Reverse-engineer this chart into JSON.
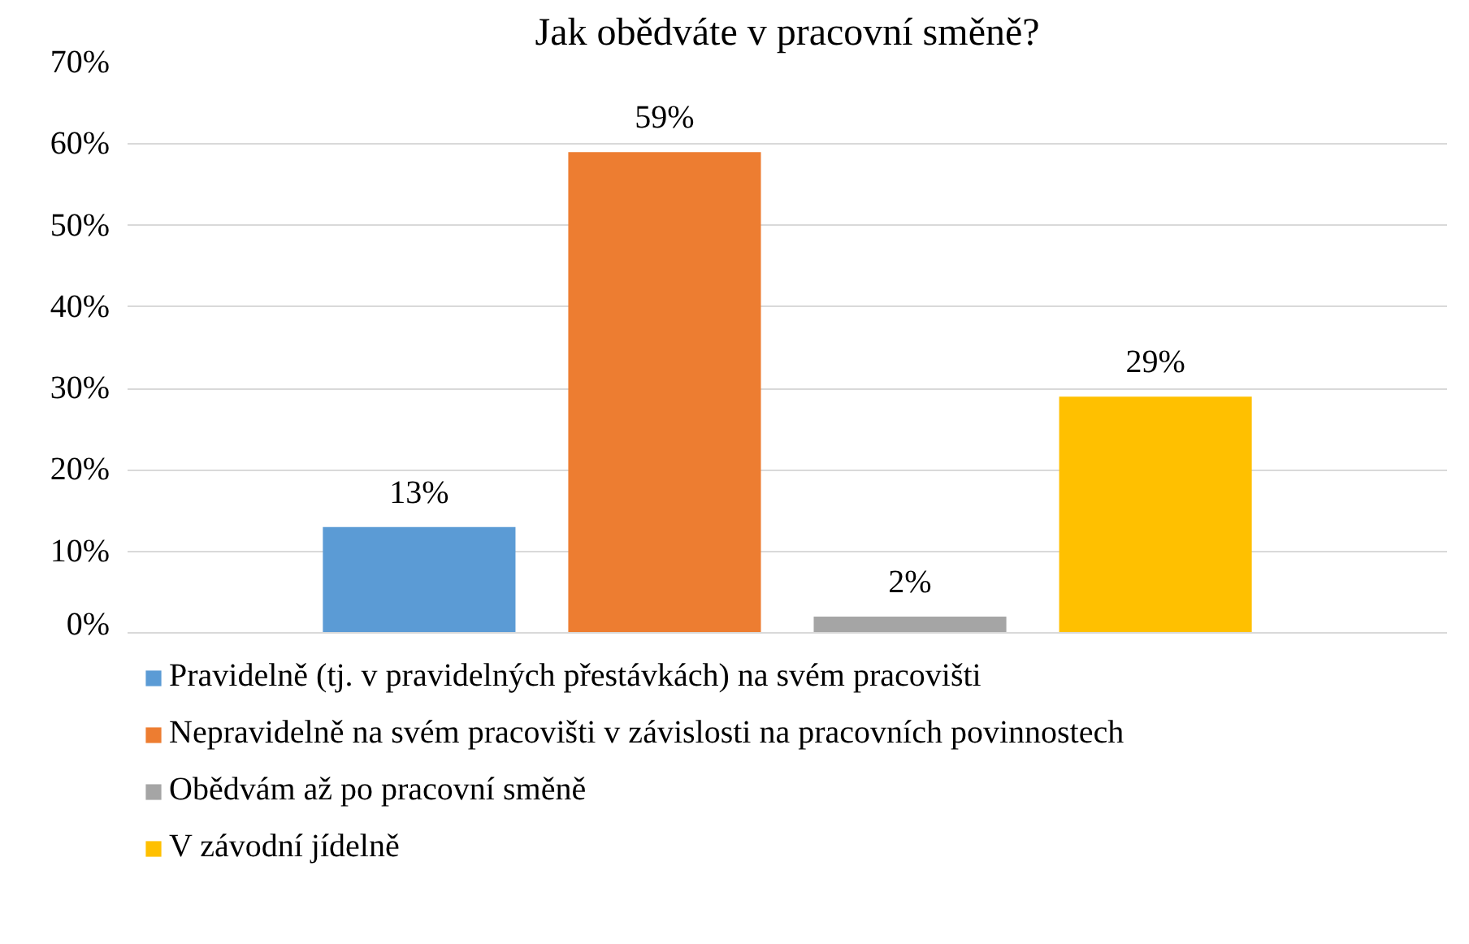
{
  "chart_data": {
    "type": "bar",
    "title": "Jak obědváte v pracovní směně?",
    "categories": [
      null
    ],
    "series": [
      {
        "name": "Pravidelně (tj. v pravidelných přestávkách) na svém pracovišti",
        "color": "#5b9bd5",
        "values": [
          13
        ],
        "value_labels": [
          "13%"
        ]
      },
      {
        "name": "Nepravidelně na svém pracovišti v závislosti na pracovních povinnostech",
        "color": "#ed7d31",
        "values": [
          59
        ],
        "value_labels": [
          "59%"
        ]
      },
      {
        "name": "Obědvám až po pracovní směně",
        "color": "#a5a5a5",
        "values": [
          2
        ],
        "value_labels": [
          "2%"
        ]
      },
      {
        "name": "V závodní jídelně",
        "color": "#ffc000",
        "values": [
          29
        ],
        "value_labels": [
          "29%"
        ]
      }
    ],
    "ylim": [
      0,
      70
    ],
    "yticks": [
      {
        "value": 0,
        "label": "0%"
      },
      {
        "value": 10,
        "label": "10%"
      },
      {
        "value": 20,
        "label": "20%"
      },
      {
        "value": 30,
        "label": "30%"
      },
      {
        "value": 40,
        "label": "40%"
      },
      {
        "value": 50,
        "label": "50%"
      },
      {
        "value": 60,
        "label": "60%"
      },
      {
        "value": 70,
        "label": "70%"
      }
    ],
    "grid": "y",
    "legend": "bottom"
  }
}
